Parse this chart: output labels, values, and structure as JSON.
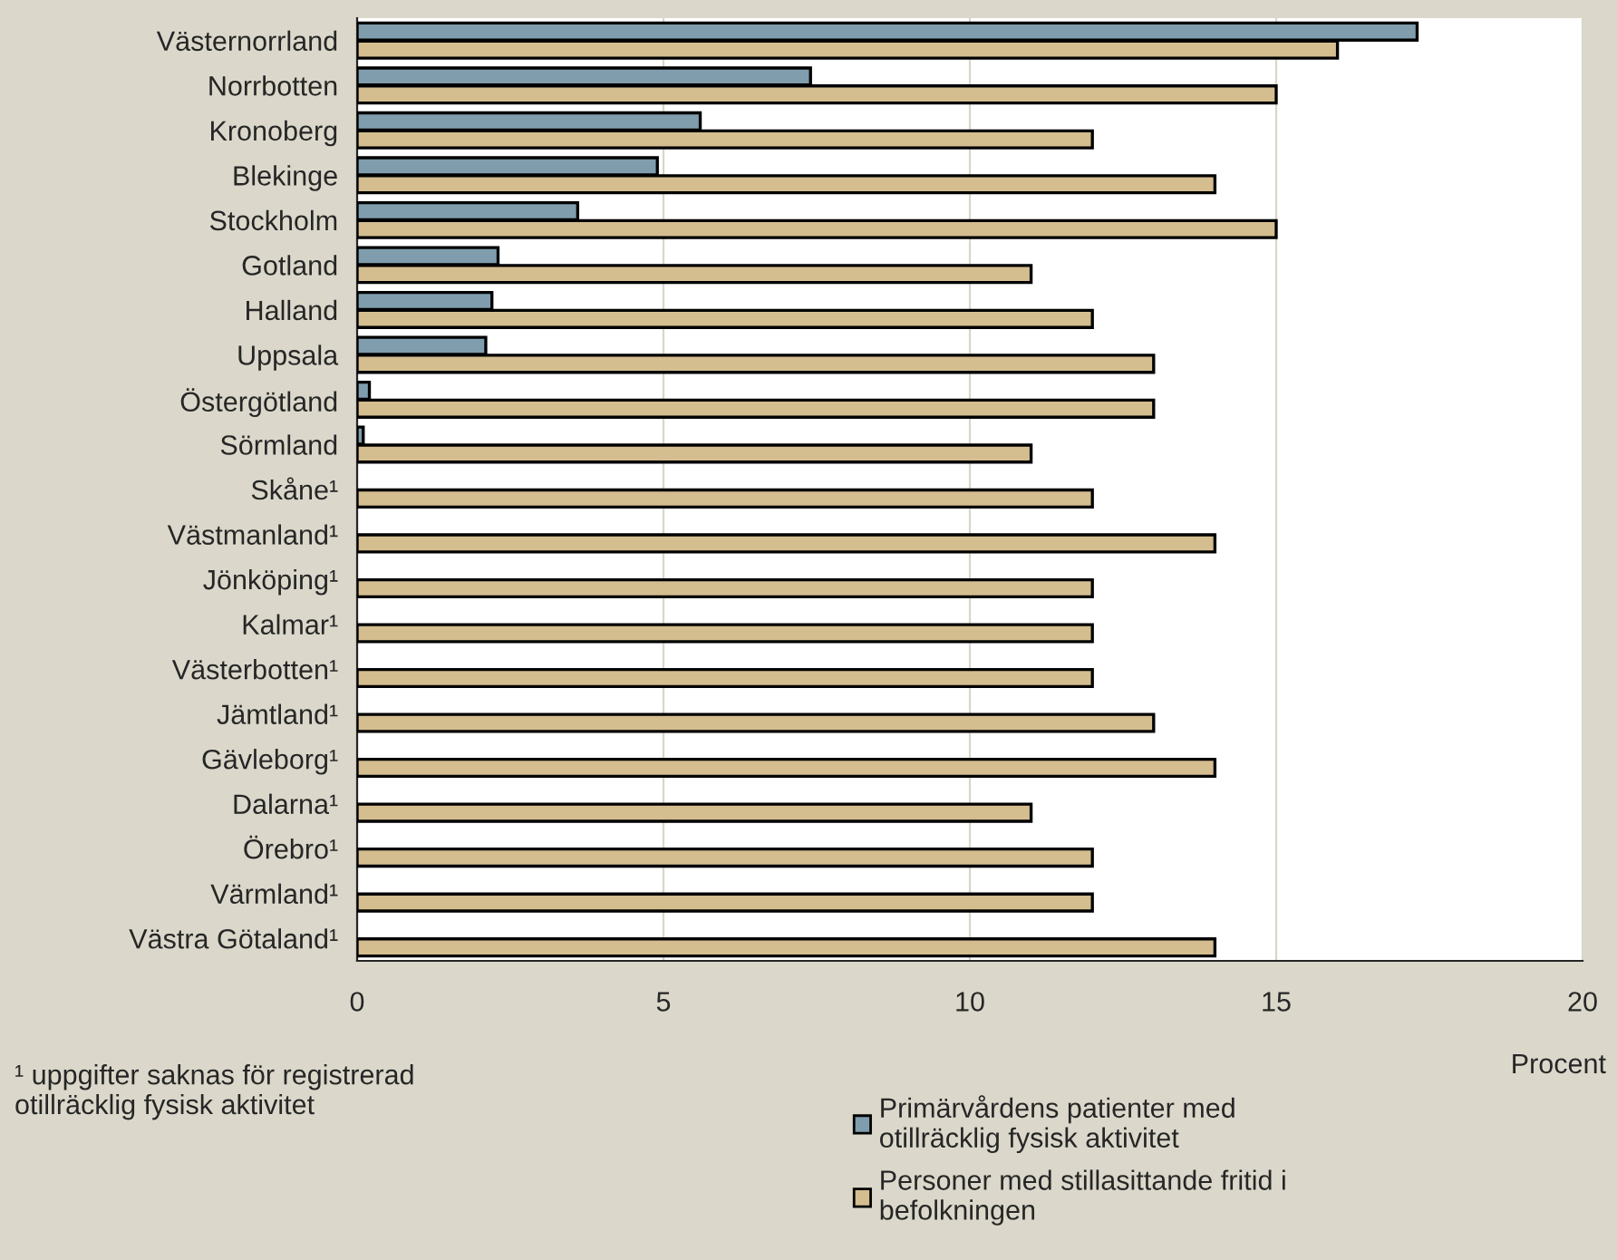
{
  "chart_data": {
    "type": "bar",
    "orientation": "horizontal",
    "xlabel": "Procent",
    "categories": [
      "Västernorrland",
      "Norrbotten",
      "Kronoberg",
      "Blekinge",
      "Stockholm",
      "Gotland",
      "Halland",
      "Uppsala",
      "Östergötland",
      "Sörmland",
      "Skåne¹",
      "Västmanland¹",
      "Jönköping¹",
      "Kalmar¹",
      "Västerbotten¹",
      "Jämtland¹",
      "Gävleborg¹",
      "Dalarna¹",
      "Örebro¹",
      "Värmland¹",
      "Västra Götaland¹"
    ],
    "series": [
      {
        "name": "Primärvårdens patienter med\notillräcklig fysisk aktivitet",
        "color": "#7f9dad",
        "values": [
          17.3,
          7.4,
          5.6,
          4.9,
          3.6,
          2.3,
          2.2,
          2.1,
          0.2,
          0.1,
          null,
          null,
          null,
          null,
          null,
          null,
          null,
          null,
          null,
          null,
          null
        ]
      },
      {
        "name": "Personer med stillasittande fritid i\nbefolkningen",
        "color": "#d4bd8f",
        "values": [
          16,
          15,
          12,
          14,
          15,
          11,
          12,
          13,
          13,
          11,
          12,
          14,
          12,
          12,
          12,
          13,
          14,
          11,
          12,
          12,
          14
        ]
      }
    ],
    "xlim": [
      0,
      20
    ],
    "xticks": [
      0,
      5,
      10,
      15,
      20
    ],
    "grid": "x",
    "legend": "bottom",
    "annotations": [
      "¹ uppgifter saknas för registrerad\notillräcklig fysisk aktivitet"
    ]
  }
}
